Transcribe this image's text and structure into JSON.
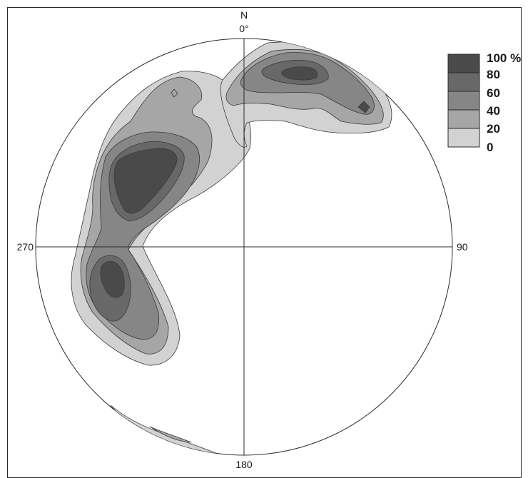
{
  "diagram": {
    "north_letter": "N",
    "north_angle": "0°",
    "east_label": "90",
    "south_label": "180",
    "west_label": "270"
  },
  "legend": {
    "labels": [
      "100 %",
      "80",
      "60",
      "40",
      "20",
      "0"
    ],
    "colors": [
      "#4a4a4a",
      "#686868",
      "#868686",
      "#a6a6a6",
      "#d2d2d2"
    ]
  },
  "colors": {
    "level_20": "#d2d2d2",
    "level_40": "#a6a6a6",
    "level_60": "#868686",
    "level_80": "#686868",
    "level_100": "#4a4a4a",
    "outline": "#2b2b2b"
  }
}
